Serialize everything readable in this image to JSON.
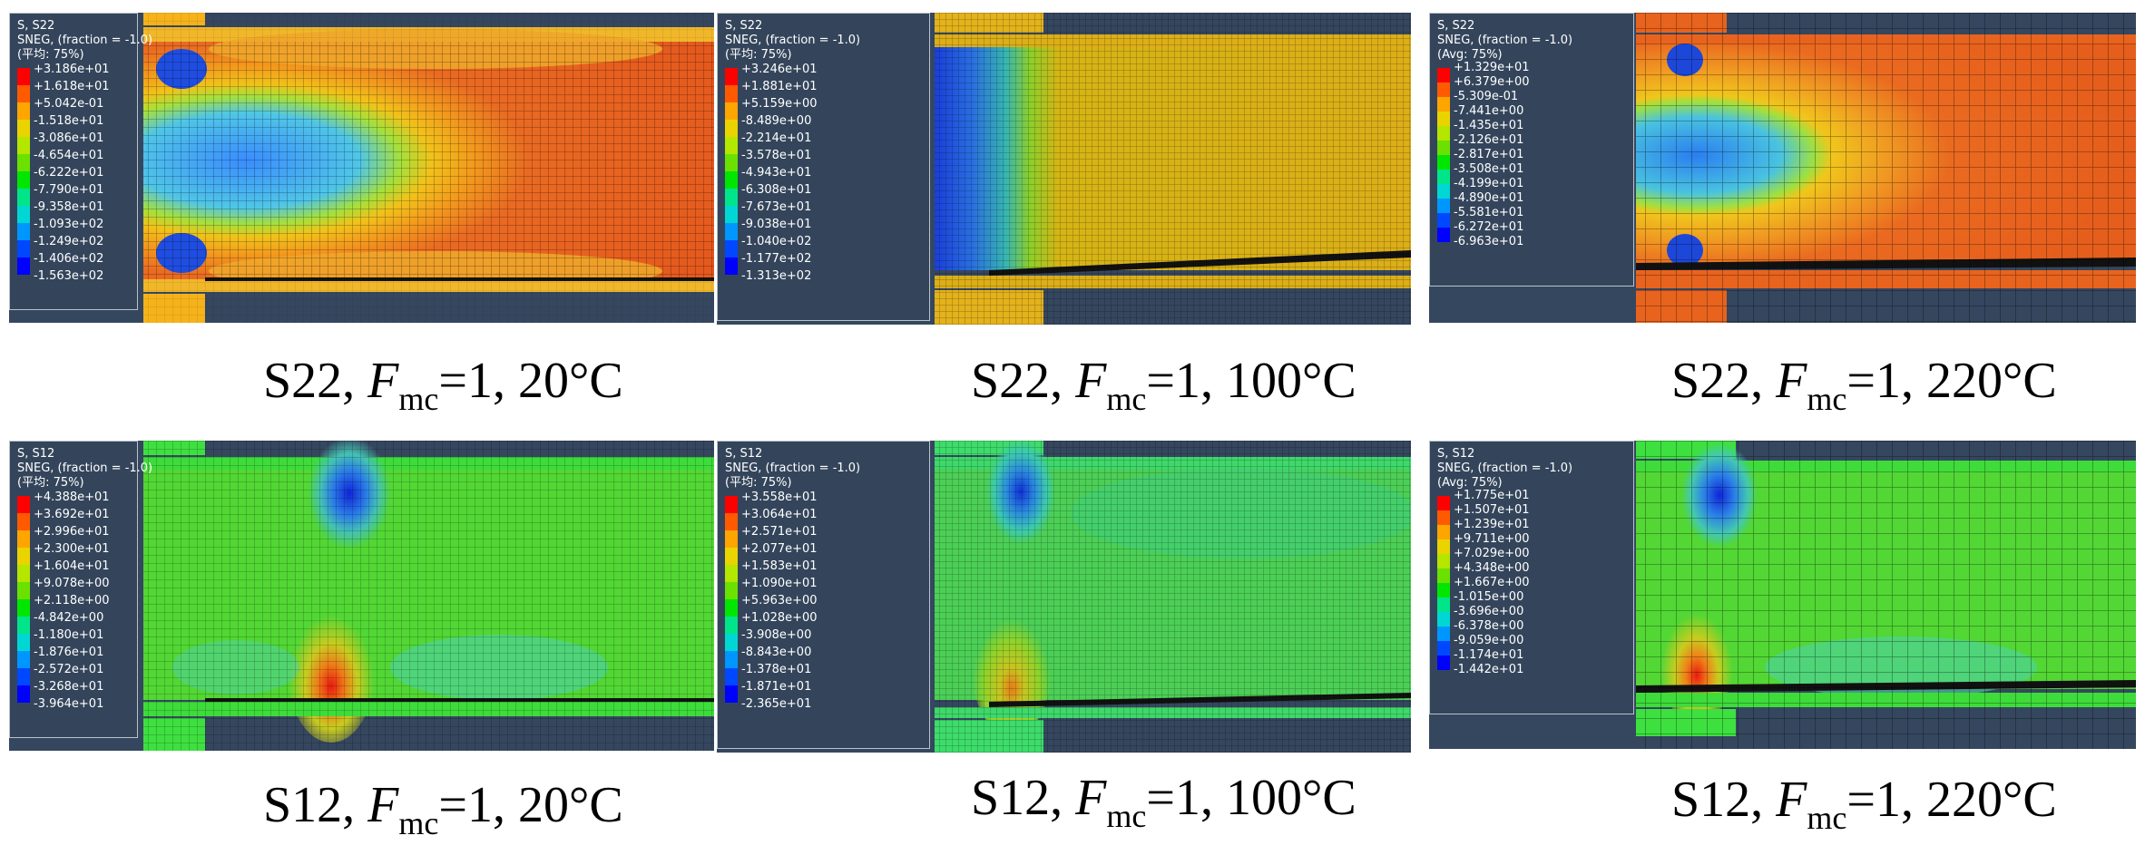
{
  "palette": [
    "#ff0000",
    "#ff5a00",
    "#ffa500",
    "#e9d400",
    "#b4e600",
    "#6ae100",
    "#00e600",
    "#00e58a",
    "#00d7d4",
    "#0096ff",
    "#0048ff",
    "#0000ff"
  ],
  "panels": [
    {
      "id": "s22-20",
      "legend": {
        "title": "S, S22",
        "sub": "SNEG, (fraction = -1.0)",
        "avg": "(平均: 75%)",
        "values": [
          "+3.186e+01",
          "+1.618e+01",
          "+5.042e-01",
          "-1.518e+01",
          "-3.086e+01",
          "-4.654e+01",
          "-6.222e+01",
          "-7.790e+01",
          "-9.358e+01",
          "-1.093e+02",
          "-1.249e+02",
          "-1.406e+02",
          "-1.563e+02"
        ]
      },
      "caption": {
        "stress": "S22",
        "sym": "F",
        "sub": "mc",
        "rest": "=1, 20°C"
      }
    },
    {
      "id": "s22-100",
      "legend": {
        "title": "S, S22",
        "sub": "SNEG, (fraction = -1.0)",
        "avg": "(平均: 75%)",
        "values": [
          "+3.246e+01",
          "+1.881e+01",
          "+5.159e+00",
          "-8.489e+00",
          "-2.214e+01",
          "-3.578e+01",
          "-4.943e+01",
          "-6.308e+01",
          "-7.673e+01",
          "-9.038e+01",
          "-1.040e+02",
          "-1.177e+02",
          "-1.313e+02"
        ]
      },
      "caption": {
        "stress": "S22",
        "sym": "F",
        "sub": "mc",
        "rest": "=1, 100°C"
      }
    },
    {
      "id": "s22-220",
      "legend": {
        "title": "S, S22",
        "sub": "SNEG, (fraction = -1.0)",
        "avg": "(Avg: 75%)",
        "values": [
          "+1.329e+01",
          "+6.379e+00",
          "-5.309e-01",
          "-7.441e+00",
          "-1.435e+01",
          "-2.126e+01",
          "-2.817e+01",
          "-3.508e+01",
          "-4.199e+01",
          "-4.890e+01",
          "-5.581e+01",
          "-6.272e+01",
          "-6.963e+01"
        ]
      },
      "caption": {
        "stress": "S22",
        "sym": "F",
        "sub": "mc",
        "rest": "=1, 220°C"
      }
    },
    {
      "id": "s12-20",
      "legend": {
        "title": "S, S12",
        "sub": "SNEG, (fraction = -1.0)",
        "avg": "(平均: 75%)",
        "values": [
          "+4.388e+01",
          "+3.692e+01",
          "+2.996e+01",
          "+2.300e+01",
          "+1.604e+01",
          "+9.078e+00",
          "+2.118e+00",
          "-4.842e+00",
          "-1.180e+01",
          "-1.876e+01",
          "-2.572e+01",
          "-3.268e+01",
          "-3.964e+01"
        ]
      },
      "caption": {
        "stress": "S12",
        "sym": "F",
        "sub": "mc",
        "rest": "=1, 20°C"
      }
    },
    {
      "id": "s12-100",
      "legend": {
        "title": "S, S12",
        "sub": "SNEG, (fraction = -1.0)",
        "avg": "(平均: 75%)",
        "values": [
          "+3.558e+01",
          "+3.064e+01",
          "+2.571e+01",
          "+2.077e+01",
          "+1.583e+01",
          "+1.090e+01",
          "+5.963e+00",
          "+1.028e+00",
          "-3.908e+00",
          "-8.843e+00",
          "-1.378e+01",
          "-1.871e+01",
          "-2.365e+01"
        ]
      },
      "caption": {
        "stress": "S12",
        "sym": "F",
        "sub": "mc",
        "rest": "=1, 100°C"
      }
    },
    {
      "id": "s12-220",
      "legend": {
        "title": "S, S12",
        "sub": "SNEG, (fraction = -1.0)",
        "avg": "(Avg: 75%)",
        "values": [
          "+1.775e+01",
          "+1.507e+01",
          "+1.239e+01",
          "+9.711e+00",
          "+7.029e+00",
          "+4.348e+00",
          "+1.667e+00",
          "-1.015e+00",
          "-3.696e+00",
          "-6.378e+00",
          "-9.059e+00",
          "-1.174e+01",
          "-1.442e+01"
        ]
      },
      "caption": {
        "stress": "S12",
        "sym": "F",
        "sub": "mc",
        "rest": "=1, 220°C"
      }
    }
  ]
}
